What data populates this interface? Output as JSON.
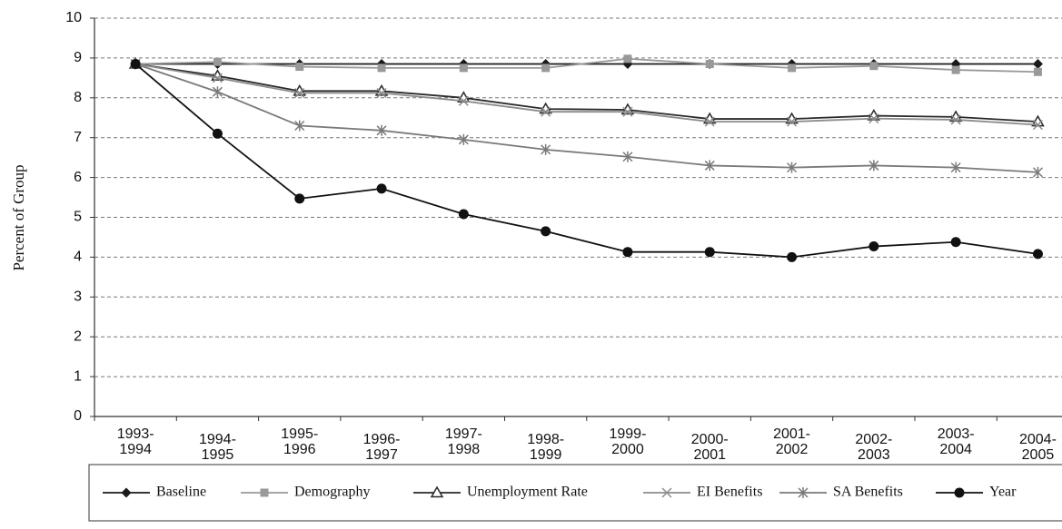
{
  "chart_data": {
    "type": "line",
    "y_label": "Percent of Group",
    "categories": [
      "1993-1994",
      "1994-1995",
      "1995-1996",
      "1996-1997",
      "1997-1998",
      "1998-1999",
      "1999-2000",
      "2000-2001",
      "2001-2002",
      "2002-2003",
      "2003-2004",
      "2004-2005"
    ],
    "series": [
      {
        "name": "Baseline",
        "color": "#1a1a1a",
        "marker": "diamond",
        "values": [
          8.85,
          8.85,
          8.85,
          8.85,
          8.85,
          8.85,
          8.85,
          8.85,
          8.85,
          8.85,
          8.85,
          8.85
        ]
      },
      {
        "name": "Demography",
        "color": "#999999",
        "marker": "square",
        "values": [
          8.85,
          8.9,
          8.78,
          8.75,
          8.75,
          8.75,
          8.98,
          8.85,
          8.75,
          8.8,
          8.7,
          8.65
        ]
      },
      {
        "name": "Unemployment Rate",
        "color": "#2a2a2a",
        "marker": "triangle",
        "values": [
          8.85,
          8.55,
          8.17,
          8.17,
          8.0,
          7.72,
          7.7,
          7.47,
          7.47,
          7.55,
          7.52,
          7.4
        ]
      },
      {
        "name": "EI Benefits",
        "color": "#8c8c8c",
        "marker": "x",
        "values": [
          8.85,
          8.5,
          8.12,
          8.12,
          7.92,
          7.65,
          7.65,
          7.4,
          7.4,
          7.48,
          7.45,
          7.32
        ]
      },
      {
        "name": "SA Benefits",
        "color": "#7a7a7a",
        "marker": "asterisk",
        "values": [
          8.85,
          8.15,
          7.3,
          7.18,
          6.95,
          6.7,
          6.52,
          6.3,
          6.25,
          6.3,
          6.25,
          6.13
        ]
      },
      {
        "name": "Year",
        "color": "#111111",
        "marker": "circle",
        "values": [
          8.85,
          7.1,
          5.47,
          5.72,
          5.08,
          4.65,
          4.13,
          4.13,
          4.0,
          4.27,
          4.38,
          4.08
        ]
      }
    ],
    "ylim": [
      0,
      10
    ],
    "yticks": [
      0,
      1,
      2,
      3,
      4,
      5,
      6,
      7,
      8,
      9,
      10
    ],
    "grid": true
  }
}
